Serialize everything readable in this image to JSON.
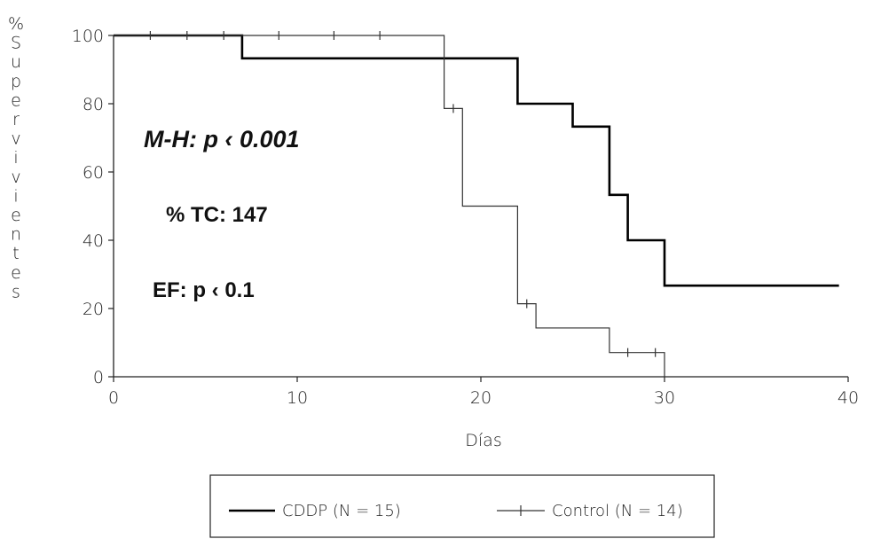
{
  "chart_data": {
    "type": "line",
    "step": true,
    "xlabel": "Días",
    "ylabel": "% Supervivientes",
    "xlim": [
      0,
      40
    ],
    "ylim": [
      0,
      100
    ],
    "xticks": [
      "0",
      "10",
      "20",
      "30",
      "40"
    ],
    "yticks": [
      "0",
      "20",
      "40",
      "60",
      "80",
      "100"
    ],
    "grid": false,
    "legend_position": "bottom",
    "series": [
      {
        "name": "CDDP (N = 15)",
        "color": "#000000",
        "x": [
          0,
          7,
          22,
          25,
          27,
          28,
          30,
          39.5
        ],
        "y": [
          100,
          93.3,
          80,
          73.3,
          53.3,
          40,
          26.7,
          26.7
        ],
        "censored": []
      },
      {
        "name": "Control (N = 14)",
        "color": "#333333",
        "x": [
          0,
          18,
          19,
          22,
          23,
          27,
          30
        ],
        "y": [
          100,
          78.6,
          50,
          21.4,
          14.3,
          7.1,
          0
        ],
        "censored": [
          {
            "x": 2,
            "y": 100
          },
          {
            "x": 4,
            "y": 100
          },
          {
            "x": 6,
            "y": 100
          },
          {
            "x": 9,
            "y": 100
          },
          {
            "x": 12,
            "y": 100
          },
          {
            "x": 14.5,
            "y": 100
          },
          {
            "x": 18.5,
            "y": 78.6
          },
          {
            "x": 22.5,
            "y": 21.4
          },
          {
            "x": 28,
            "y": 7.1
          },
          {
            "x": 29.5,
            "y": 7.1
          }
        ]
      }
    ],
    "annotations": [
      {
        "text": "M-H: p ‹ 0.001",
        "style": "bold-italic"
      },
      {
        "text": "% TC: 147",
        "style": "bold"
      },
      {
        "text": "EF: p ‹ 0.1",
        "style": "bold"
      }
    ]
  }
}
